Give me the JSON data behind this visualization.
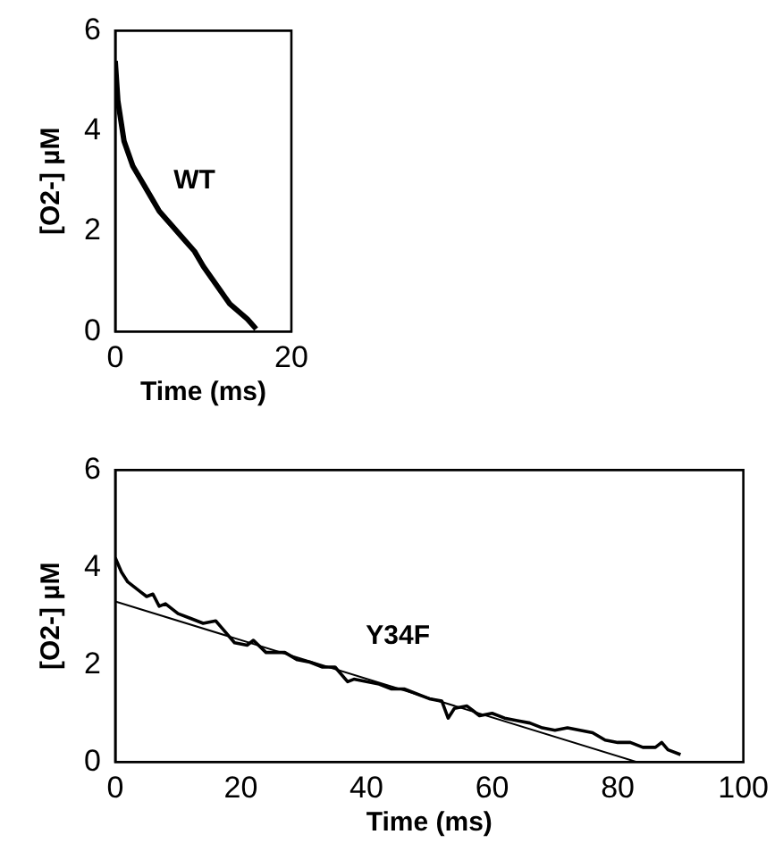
{
  "chart_data": [
    {
      "type": "line",
      "xlabel": "Time (ms)",
      "ylabel": "[O2-] µM",
      "xlim": [
        0,
        20
      ],
      "xticks": [
        0,
        20
      ],
      "ylim": [
        0,
        6
      ],
      "yticks": [
        0,
        2,
        4,
        6
      ],
      "marker": "none",
      "annotations": [
        "WT"
      ],
      "series": [
        {
          "color": "#000000",
          "x": [
            0,
            0.3,
            1,
            2,
            3,
            4,
            5,
            6,
            7,
            8,
            9,
            10,
            11,
            12,
            13,
            14,
            15,
            16
          ],
          "values": [
            5.4,
            4.6,
            3.8,
            3.3,
            3.0,
            2.7,
            2.4,
            2.2,
            2.0,
            1.8,
            1.6,
            1.3,
            1.05,
            0.8,
            0.55,
            0.4,
            0.25,
            0.05
          ]
        }
      ]
    },
    {
      "type": "line",
      "xlabel": "Time (ms)",
      "ylabel": "[O2-] µM",
      "xlim": [
        0,
        100
      ],
      "xticks": [
        0,
        20,
        40,
        60,
        80,
        100
      ],
      "ylim": [
        0,
        6
      ],
      "yticks": [
        0,
        2,
        4,
        6
      ],
      "marker": "none",
      "annotations": [
        "Y34F"
      ],
      "series": [
        {
          "color": "#000000",
          "x": [
            0,
            1,
            2,
            3,
            4,
            5,
            6,
            7,
            8,
            10,
            12,
            14,
            16,
            17,
            19,
            21,
            22,
            24,
            27,
            29,
            31,
            33,
            35,
            37,
            38,
            40,
            42,
            44,
            46,
            48,
            50,
            52,
            53,
            54,
            56,
            57,
            58,
            60,
            62,
            64,
            66,
            68,
            70,
            72,
            74,
            76,
            78,
            80,
            82,
            84,
            86,
            87,
            88,
            90
          ],
          "values": [
            4.2,
            3.9,
            3.7,
            3.6,
            3.5,
            3.4,
            3.45,
            3.2,
            3.25,
            3.05,
            2.95,
            2.85,
            2.9,
            2.75,
            2.45,
            2.4,
            2.5,
            2.25,
            2.25,
            2.1,
            2.05,
            1.95,
            1.95,
            1.65,
            1.7,
            1.65,
            1.6,
            1.5,
            1.5,
            1.4,
            1.3,
            1.25,
            0.9,
            1.1,
            1.15,
            1.05,
            0.95,
            1.0,
            0.9,
            0.85,
            0.8,
            0.7,
            0.65,
            0.7,
            0.65,
            0.6,
            0.45,
            0.4,
            0.4,
            0.3,
            0.3,
            0.4,
            0.25,
            0.15
          ]
        },
        {
          "type": "line",
          "color": "#000000",
          "x": [
            0,
            83
          ],
          "values": [
            3.3,
            0
          ]
        }
      ]
    }
  ]
}
